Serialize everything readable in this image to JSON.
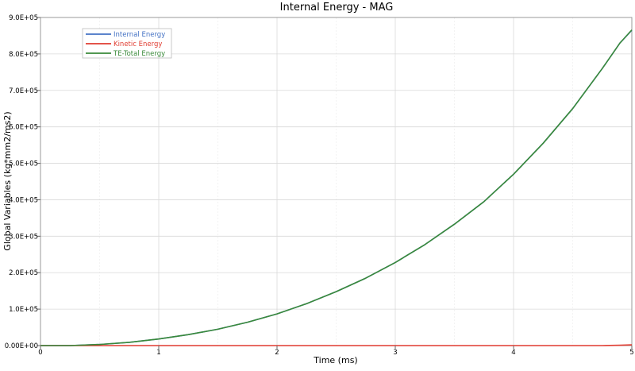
{
  "chart_data": {
    "type": "line",
    "title": "Internal Energy - MAG",
    "xlabel": "Time (ms)",
    "ylabel": "Global Variables (kg*mm2/ms2)",
    "xlim": [
      0,
      5
    ],
    "ylim": [
      0,
      900000
    ],
    "x_ticks": [
      {
        "value": 0,
        "label": "0"
      },
      {
        "value": 1,
        "label": "1"
      },
      {
        "value": 2,
        "label": "2"
      },
      {
        "value": 3,
        "label": "3"
      },
      {
        "value": 4,
        "label": "4"
      },
      {
        "value": 5,
        "label": "5"
      }
    ],
    "y_ticks": [
      {
        "value": 0,
        "label": "0.00E+00"
      },
      {
        "value": 100000,
        "label": "1.0E+05"
      },
      {
        "value": 200000,
        "label": "2.0E+05"
      },
      {
        "value": 300000,
        "label": "3.0E+05"
      },
      {
        "value": 400000,
        "label": "4.0E+05"
      },
      {
        "value": 500000,
        "label": "5.0E+05"
      },
      {
        "value": 600000,
        "label": "6.0E+05"
      },
      {
        "value": 700000,
        "label": "7.0E+05"
      },
      {
        "value": 800000,
        "label": "8.0E+05"
      },
      {
        "value": 900000,
        "label": "9.0E+05"
      }
    ],
    "grid": true,
    "legend_position": "top-left",
    "x": [
      0,
      0.25,
      0.5,
      0.75,
      1.0,
      1.25,
      1.5,
      1.75,
      2.0,
      2.25,
      2.5,
      2.75,
      3.0,
      3.25,
      3.5,
      3.75,
      4.0,
      4.25,
      4.5,
      4.75,
      4.9,
      5.0
    ],
    "series": [
      {
        "name": "Internal Energy",
        "color": "#4472c4",
        "values": [
          0,
          0,
          3000,
          9000,
          18000,
          30000,
          45000,
          64000,
          87000,
          115000,
          148000,
          185000,
          228000,
          277000,
          333000,
          395000,
          470000,
          555000,
          650000,
          760000,
          830000,
          865000
        ]
      },
      {
        "name": "Kinetic Energy",
        "color": "#e03c31",
        "values": [
          0,
          0,
          0,
          0,
          0,
          0,
          0,
          0,
          0,
          0,
          0,
          0,
          0,
          0,
          0,
          0,
          0,
          0,
          0,
          0,
          800,
          2000
        ]
      },
      {
        "name": "TE-Total Energy",
        "color": "#3a8a3a",
        "values": [
          0,
          0,
          3000,
          9000,
          18000,
          30000,
          45000,
          64000,
          87000,
          115000,
          148000,
          185000,
          228000,
          277000,
          333000,
          395000,
          470000,
          555000,
          650000,
          760000,
          830000,
          866000
        ]
      }
    ]
  }
}
